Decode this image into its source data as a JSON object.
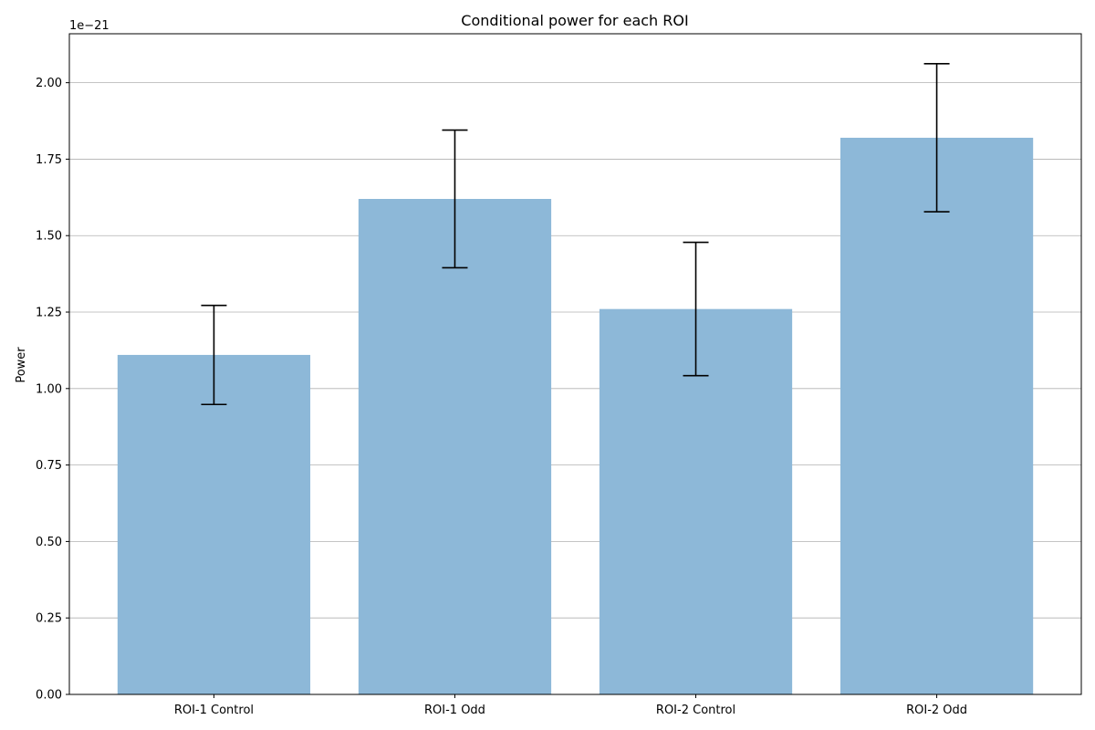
{
  "chart_data": {
    "type": "bar",
    "title": "Conditional power for each ROI",
    "xlabel": "",
    "ylabel": "Power",
    "scale_label": "1e−21",
    "categories": [
      "ROI-1 Control",
      "ROI-1 Odd",
      "ROI-2 Control",
      "ROI-2 Odd"
    ],
    "values": [
      1.11,
      1.62,
      1.26,
      1.82
    ],
    "error": [
      0.162,
      0.225,
      0.218,
      0.242
    ],
    "value_multiplier": "1e-21",
    "ylim": [
      0,
      2.16
    ],
    "yticks": [
      0.0,
      0.25,
      0.5,
      0.75,
      1.0,
      1.25,
      1.5,
      1.75,
      2.0
    ],
    "ytick_labels": [
      "0.00",
      "0.25",
      "0.50",
      "0.75",
      "1.00",
      "1.25",
      "1.50",
      "1.75",
      "2.00"
    ],
    "grid": "y",
    "bar_color": "#8db8d8",
    "error_color": "#000000",
    "grid_color": "#b0b0b0"
  }
}
